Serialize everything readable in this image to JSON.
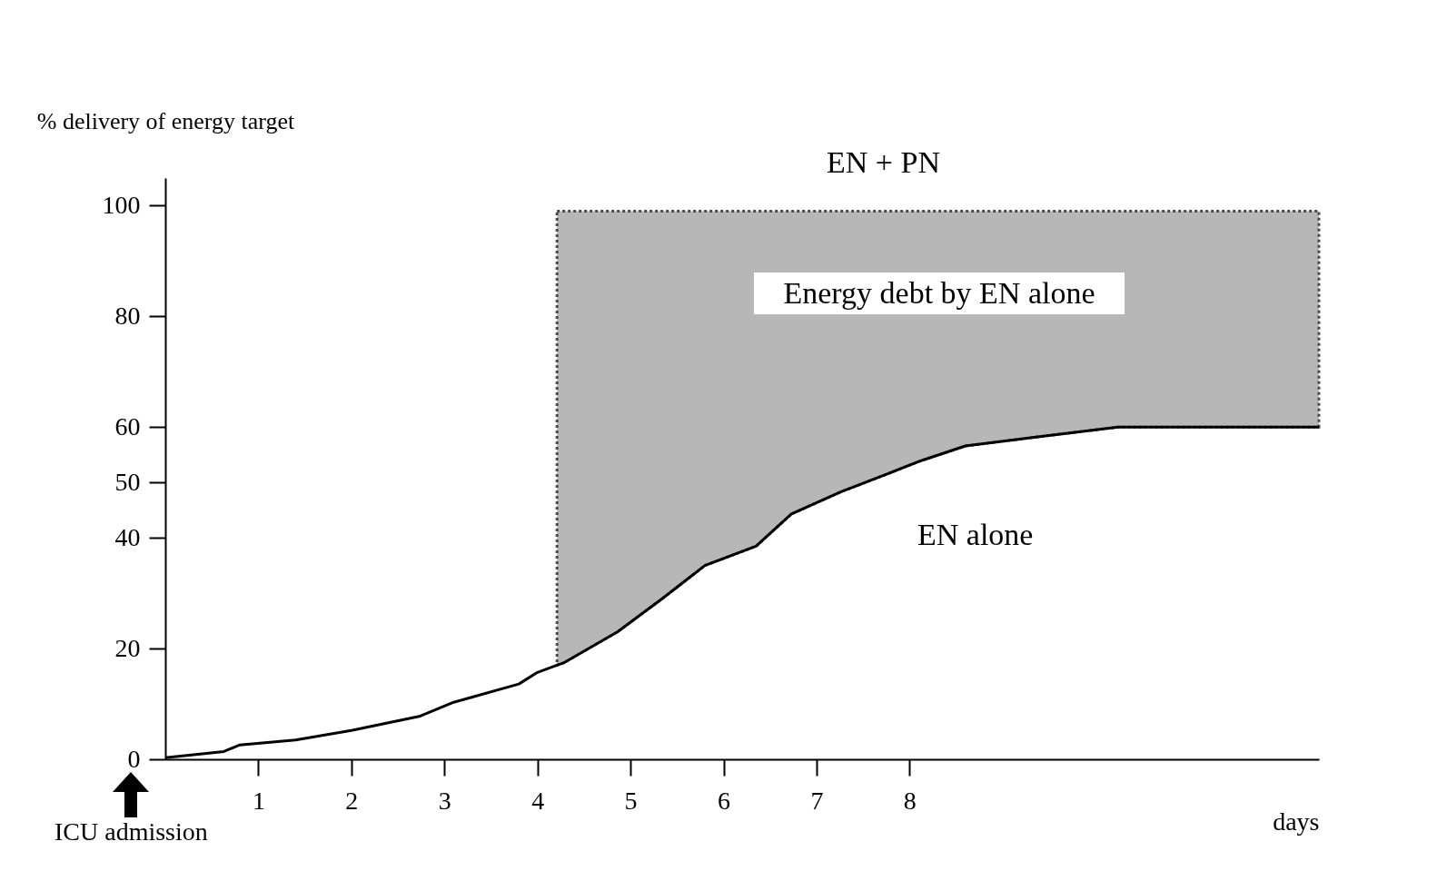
{
  "chart_data": {
    "type": "line",
    "ylabel": "% delivery of energy target",
    "xlabel": "days",
    "xlim": [
      0,
      12.4
    ],
    "xticks": [
      1,
      2,
      3,
      4,
      5,
      6,
      7,
      8
    ],
    "ylim": [
      0,
      105
    ],
    "yticks": [
      0,
      20,
      40,
      50,
      60,
      80,
      100
    ],
    "series": [
      {
        "type": "area",
        "color": "#9a9a9a",
        "line_style": "dotted",
        "x": [
          4.21,
          4.28,
          4.86,
          5.34,
          5.8,
          6.35,
          6.73,
          7.26,
          7.74,
          8.1,
          8.6,
          9.4,
          10.24,
          12.4
        ],
        "values": [
          99,
          99,
          99,
          99,
          99,
          99,
          99,
          99,
          99,
          99,
          99,
          99,
          99,
          99
        ]
      },
      {
        "color": "#000000",
        "line_style": "solid",
        "x": [
          0,
          0.63,
          0.8,
          1.4,
          2.0,
          2.74,
          3.1,
          3.8,
          4.0,
          4.21,
          4.28,
          4.86,
          5.34,
          5.8,
          6.35,
          6.73,
          7.26,
          7.74,
          8.1,
          8.6,
          9.4,
          10.24,
          12.4
        ],
        "values": [
          0.3,
          1.4,
          2.6,
          3.5,
          5.2,
          7.8,
          10.3,
          13.6,
          15.7,
          17,
          17.4,
          23,
          29,
          35,
          38.5,
          44.3,
          48.3,
          51.4,
          53.8,
          56.6,
          58.3,
          60,
          60
        ]
      }
    ],
    "annotations": [
      "EN + PN",
      "Energy debt by EN alone",
      "EN alone",
      "ICU admission"
    ],
    "grid": false,
    "marker": "none"
  }
}
